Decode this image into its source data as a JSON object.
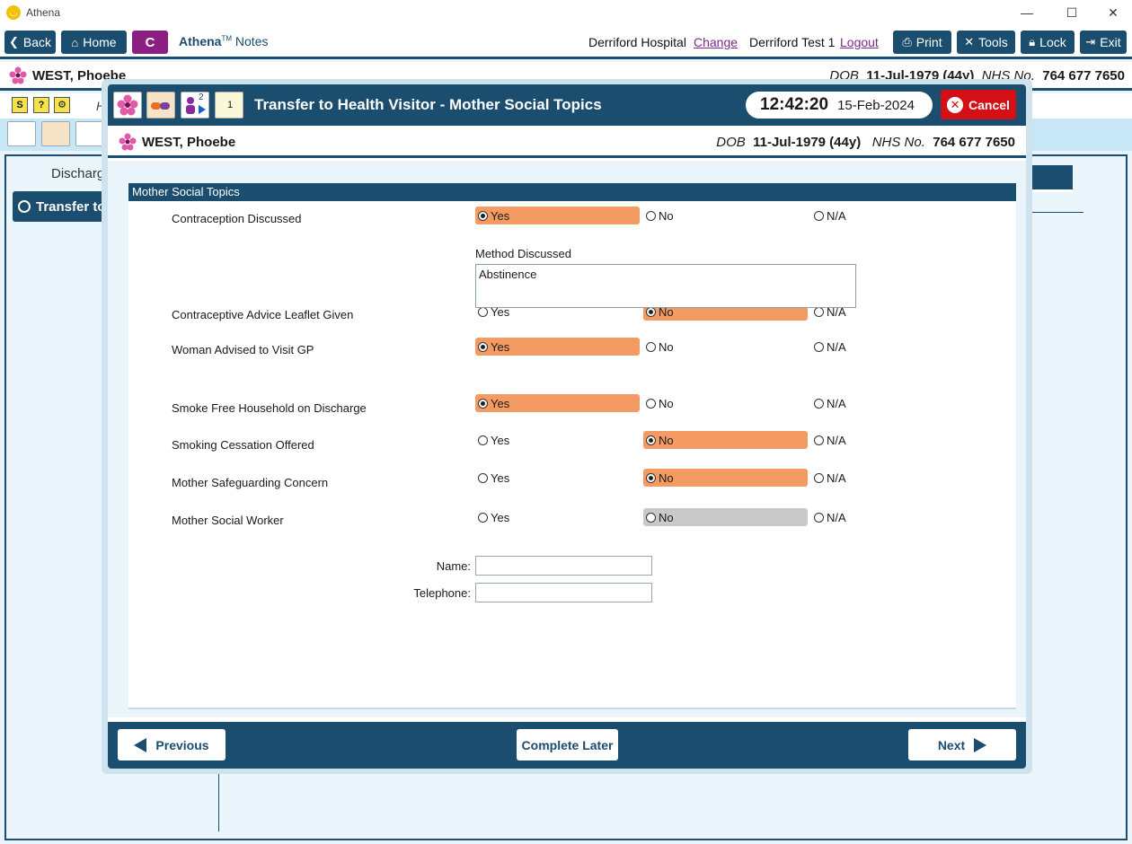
{
  "window": {
    "app_title": "Athena"
  },
  "toolbar": {
    "back": "Back",
    "home": "Home",
    "c_button": "C",
    "brand": "Athena",
    "brand_tm": "TM",
    "brand_suffix": "Notes",
    "hospital": "Derriford Hospital",
    "change": "Change",
    "user": "Derriford Test 1",
    "logout": "Logout",
    "print": "Print",
    "tools": "Tools",
    "lock": "Lock",
    "exit": "Exit"
  },
  "patient": {
    "name": "WEST, Phoebe",
    "dob_label": "DOB",
    "dob": "11-Jul-1979 (44y)",
    "nhs_label": "NHS No.",
    "nhs": "764 677 7650"
  },
  "background": {
    "discharge_label": "Discharg",
    "transfer_label": "Transfer to",
    "h_label": "H"
  },
  "modal": {
    "title": "Transfer to Health Visitor - Mother Social Topics",
    "time": "12:42:20",
    "date": "15-Feb-2024",
    "cancel": "Cancel",
    "icon_badge": "2",
    "notebook_badge": "1"
  },
  "section": {
    "heading": "Mother Social Topics",
    "questions": [
      {
        "label": "Contraception Discussed",
        "yes": "Yes",
        "no": "No",
        "na": "N/A",
        "selected": "yes"
      },
      {
        "label": "Contraceptive Advice Leaflet Given",
        "yes": "Yes",
        "no": "No",
        "na": "N/A",
        "selected": "no"
      },
      {
        "label": "Woman Advised to Visit GP",
        "yes": "Yes",
        "no": "No",
        "na": "N/A",
        "selected": "yes"
      },
      {
        "label": "Smoke Free Household on Discharge",
        "yes": "Yes",
        "no": "No",
        "na": "N/A",
        "selected": "yes"
      },
      {
        "label": "Smoking Cessation Offered",
        "yes": "Yes",
        "no": "No",
        "na": "N/A",
        "selected": "no"
      },
      {
        "label": "Mother Safeguarding Concern",
        "yes": "Yes",
        "no": "No",
        "na": "N/A",
        "selected": "no"
      },
      {
        "label": "Mother Social Worker",
        "yes": "Yes",
        "no": "No",
        "na": "N/A",
        "selected": "none"
      }
    ],
    "method_label": "Method Discussed",
    "method_value": "Abstinence",
    "name_label": "Name:",
    "name_value": "",
    "telephone_label": "Telephone:",
    "telephone_value": ""
  },
  "footer": {
    "previous": "Previous",
    "complete_later": "Complete Later",
    "next": "Next"
  },
  "colors": {
    "primary": "#1a4d6e",
    "selected_option": "#f39b63",
    "cancel": "#d40f15",
    "c_button": "#8a1e82"
  }
}
